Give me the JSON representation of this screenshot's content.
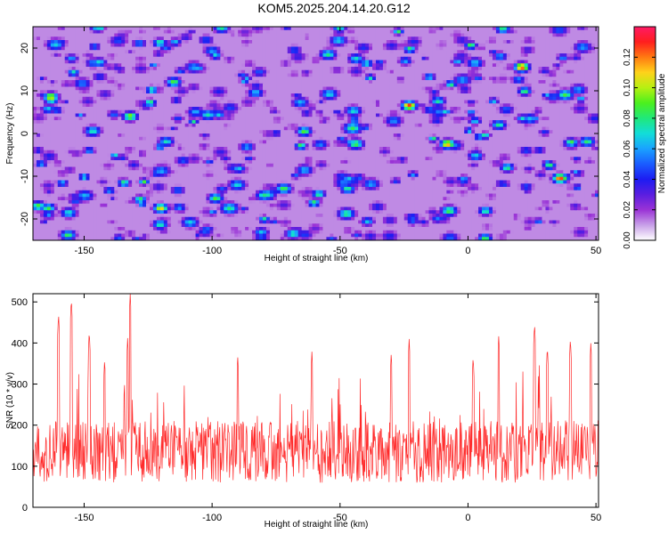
{
  "title": "KOM5.2025.204.14.20.G12",
  "chart_data": [
    {
      "type": "heatmap",
      "title": "KOM5.2025.204.14.20.G12",
      "xlabel": "Height of straight line (km)",
      "ylabel": "Frequency (Hz)",
      "xlim": [
        -170,
        51
      ],
      "ylim": [
        -25,
        25
      ],
      "xticks": [
        -150,
        -100,
        -50,
        0,
        50
      ],
      "yticks": [
        -20,
        -10,
        0,
        10,
        20
      ],
      "colorbar": {
        "label": "Normalized spectral amplitude",
        "range": [
          0,
          0.14
        ],
        "ticks": [
          "0.00",
          "0.02",
          "0.04",
          "0.06",
          "0.08",
          "0.10",
          "0.12"
        ],
        "colormap": [
          "#ffffff",
          "#c8a0e8",
          "#9a33d6",
          "#5a1ee0",
          "#1d1cf2",
          "#1a5cff",
          "#1aa2ff",
          "#12ddd9",
          "#20e87a",
          "#4bf01e",
          "#b6f012",
          "#ffd21a",
          "#ff7a12",
          "#ff1e1e",
          "#ff1a66"
        ]
      },
      "peaks": [
        {
          "x": 21,
          "y": 15.5,
          "value": 0.13
        },
        {
          "x": -23,
          "y": 6.5,
          "value": 0.13
        },
        {
          "x": 36,
          "y": -10.5,
          "value": 0.13
        },
        {
          "x": -8,
          "y": -2.5,
          "value": 0.12
        },
        {
          "x": -163,
          "y": 8.5,
          "value": 0.11
        },
        {
          "x": -120,
          "y": -17.5,
          "value": 0.11
        },
        {
          "x": -132,
          "y": 4,
          "value": 0.1
        },
        {
          "x": -64,
          "y": 0.5,
          "value": 0.09
        },
        {
          "x": -115,
          "y": 12,
          "value": 0.09
        },
        {
          "x": -47,
          "y": -13,
          "value": 0.08
        },
        {
          "x": 12,
          "y": 2,
          "value": 0.08
        },
        {
          "x": -168,
          "y": -17,
          "value": 0.09
        }
      ]
    },
    {
      "type": "line",
      "xlabel": "Height of straight line (km)",
      "ylabel": "SNR (10 * v/v)",
      "xlim": [
        -170,
        51
      ],
      "ylim": [
        0,
        520
      ],
      "xticks": [
        -150,
        -100,
        -50,
        0,
        50
      ],
      "yticks": [
        0,
        100,
        200,
        300,
        400,
        500
      ],
      "color": "#ff2a2a",
      "sample_count": 1100,
      "baseline_mean": 135,
      "notable_peaks": [
        {
          "x": -132,
          "y": 520
        },
        {
          "x": -155,
          "y": 508
        },
        {
          "x": -160,
          "y": 472
        },
        {
          "x": 26,
          "y": 448
        },
        {
          "x": 12,
          "y": 418
        },
        {
          "x": -133,
          "y": 412
        },
        {
          "x": 40,
          "y": 412
        },
        {
          "x": -23,
          "y": 410
        },
        {
          "x": 48,
          "y": 402
        },
        {
          "x": -30,
          "y": 377
        },
        {
          "x": -61,
          "y": 380
        },
        {
          "x": -90,
          "y": 370
        },
        {
          "x": -148,
          "y": 430
        },
        {
          "x": -142,
          "y": 360
        },
        {
          "x": 2,
          "y": 368
        },
        {
          "x": 31,
          "y": 392
        }
      ]
    }
  ]
}
